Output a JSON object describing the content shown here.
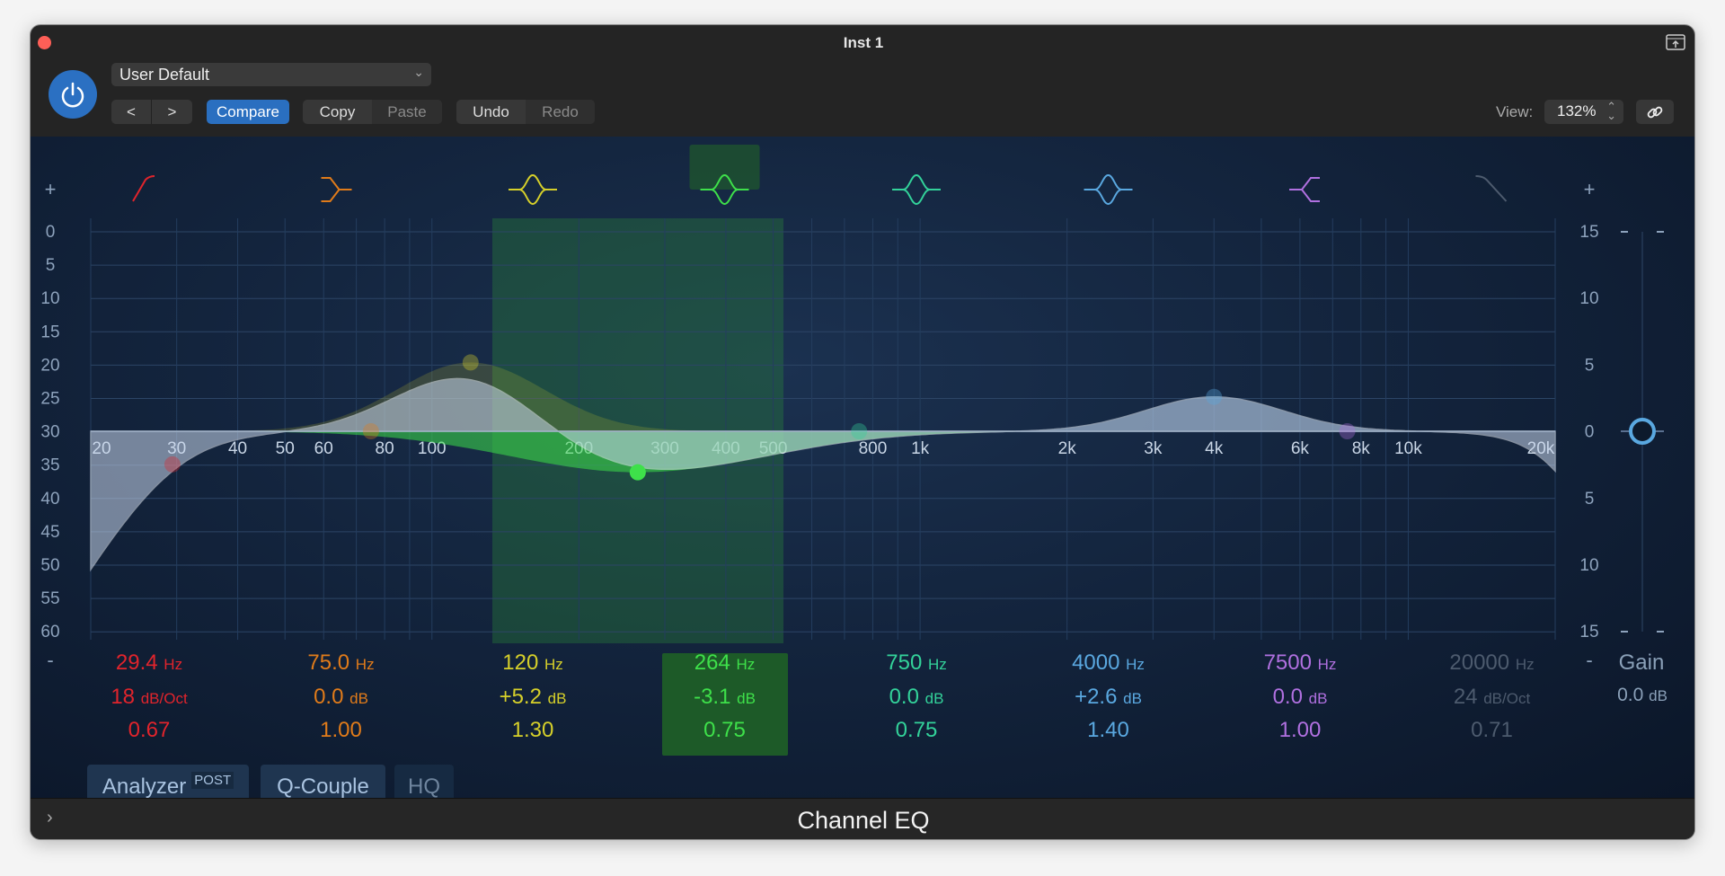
{
  "window": {
    "title": "Inst 1",
    "plugin_name": "Channel EQ"
  },
  "header": {
    "preset": "User Default",
    "prev_label": "<",
    "next_label": ">",
    "compare": "Compare",
    "copy": "Copy",
    "paste": "Paste",
    "undo": "Undo",
    "redo": "Redo",
    "view_label": "View:",
    "view_value": "132%"
  },
  "graph": {
    "left_scale": [
      "0",
      "5",
      "10",
      "15",
      "20",
      "25",
      "30",
      "35",
      "40",
      "45",
      "50",
      "55",
      "60"
    ],
    "right_scale": [
      "15",
      "10",
      "5",
      "0",
      "5",
      "10",
      "15"
    ],
    "freq_labels": [
      "20",
      "30",
      "40",
      "50",
      "60",
      "80",
      "100",
      "200",
      "300",
      "400",
      "500",
      "800",
      "1k",
      "2k",
      "3k",
      "4k",
      "6k",
      "8k",
      "10k",
      "20k"
    ],
    "plus": "+",
    "minus": "-",
    "selected_band": 3
  },
  "bands": [
    {
      "type": "low-cut",
      "color": "#e0242c",
      "freq": "29.4",
      "freq_unit": "Hz",
      "gain": "18",
      "gain_unit": "dB/Oct",
      "q": "0.67",
      "f": 29.4,
      "g": 0,
      "slope": 18
    },
    {
      "type": "low-shelf",
      "color": "#e07b1a",
      "freq": "75.0",
      "freq_unit": "Hz",
      "gain": "0.0",
      "gain_unit": "dB",
      "q": "1.00",
      "f": 75,
      "g": 0
    },
    {
      "type": "bell",
      "color": "#d6d02a",
      "freq": "120",
      "freq_unit": "Hz",
      "gain": "+5.2",
      "gain_unit": "dB",
      "q": "1.30",
      "f": 120,
      "g": 5.2
    },
    {
      "type": "bell",
      "color": "#3ee04a",
      "freq": "264",
      "freq_unit": "Hz",
      "gain": "-3.1",
      "gain_unit": "dB",
      "q": "0.75",
      "f": 264,
      "g": -3.1
    },
    {
      "type": "bell",
      "color": "#33d29a",
      "freq": "750",
      "freq_unit": "Hz",
      "gain": "0.0",
      "gain_unit": "dB",
      "q": "0.75",
      "f": 750,
      "g": 0
    },
    {
      "type": "bell",
      "color": "#5aa8e0",
      "freq": "4000",
      "freq_unit": "Hz",
      "gain": "+2.6",
      "gain_unit": "dB",
      "q": "1.40",
      "f": 4000,
      "g": 2.6
    },
    {
      "type": "high-shelf",
      "color": "#b070e0",
      "freq": "7500",
      "freq_unit": "Hz",
      "gain": "0.0",
      "gain_unit": "dB",
      "q": "1.00",
      "f": 7500,
      "g": 0
    },
    {
      "type": "high-cut",
      "color": "#4d5b6e",
      "freq": "20000",
      "freq_unit": "Hz",
      "gain": "24",
      "gain_unit": "dB/Oct",
      "q": "0.71",
      "f": 20000,
      "g": 0
    }
  ],
  "gain": {
    "label": "Gain",
    "value": "0.0",
    "unit": "dB",
    "db": 0
  },
  "buttons": {
    "analyzer": "Analyzer",
    "analyzer_badge": "POST",
    "qcouple": "Q-Couple",
    "hq": "HQ"
  }
}
